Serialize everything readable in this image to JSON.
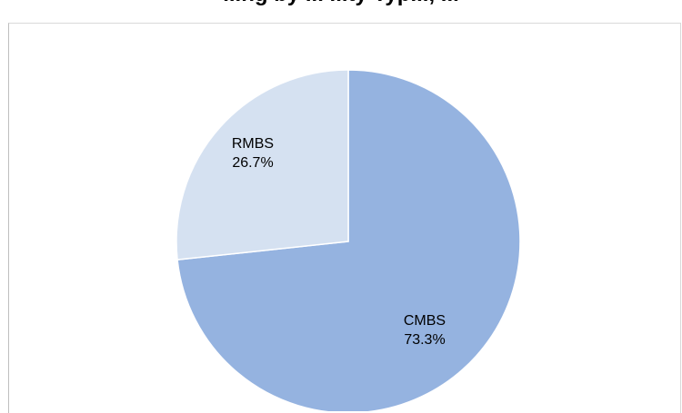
{
  "chart_data": {
    "type": "pie",
    "title": "...ng by ... ...ty Typ..., ...",
    "slices": [
      {
        "name": "CMBS",
        "value": 73.3,
        "label": "73.3%",
        "color": "#95B3E0"
      },
      {
        "name": "RMBS",
        "value": 26.7,
        "label": "26.7%",
        "color": "#D5E1F1"
      }
    ],
    "start_angle_deg": 0,
    "direction": "clockwise"
  }
}
